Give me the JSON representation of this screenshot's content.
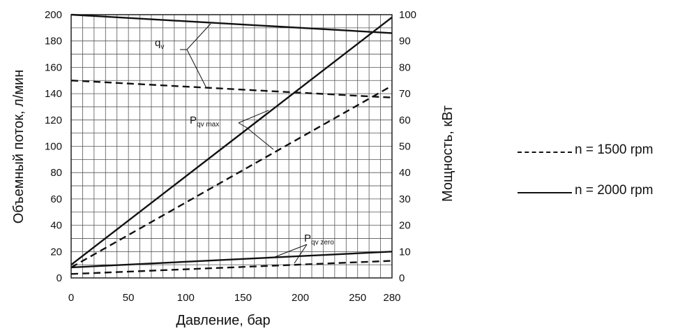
{
  "chart_data": {
    "type": "line",
    "x": [
      0,
      280
    ],
    "xlabel": "Давление, бар",
    "ylabel_left": "Объемный поток, л/мин",
    "ylabel_right": "Мощность, кВт",
    "xlim": [
      0,
      280
    ],
    "ylim_left": [
      0,
      200
    ],
    "ylim_right": [
      0,
      100
    ],
    "x_ticks": [
      0,
      50,
      100,
      150,
      200,
      250,
      280
    ],
    "y_ticks_left": [
      0,
      20,
      40,
      60,
      80,
      100,
      120,
      140,
      160,
      180,
      200
    ],
    "y_ticks_right": [
      0,
      10,
      20,
      30,
      40,
      50,
      60,
      70,
      80,
      90,
      100
    ],
    "grid": true,
    "series": [
      {
        "group": "qv",
        "axis": "left",
        "style": "solid",
        "x": [
          0,
          280
        ],
        "y": [
          200,
          186
        ]
      },
      {
        "group": "qv",
        "axis": "left",
        "style": "dashed",
        "x": [
          0,
          280
        ],
        "y": [
          150,
          137
        ]
      },
      {
        "group": "Pqv_max",
        "axis": "right",
        "style": "solid",
        "x": [
          0,
          280
        ],
        "y": [
          5,
          99
        ]
      },
      {
        "group": "Pqv_max",
        "axis": "right",
        "style": "dashed",
        "x": [
          0,
          280
        ],
        "y": [
          4,
          73
        ]
      },
      {
        "group": "Pqv_zero",
        "axis": "right",
        "style": "solid",
        "x": [
          0,
          280
        ],
        "y": [
          4,
          10
        ]
      },
      {
        "group": "Pqv_zero",
        "axis": "right",
        "style": "dashed",
        "x": [
          0,
          280
        ],
        "y": [
          1.5,
          6.5
        ]
      }
    ],
    "annotations": [
      {
        "label": "q",
        "sub": "v"
      },
      {
        "label": "P",
        "sub": "qv max"
      },
      {
        "label": "P",
        "sub": "qv zero"
      }
    ],
    "legend": {
      "placement": "right",
      "items": [
        {
          "style": "dashed",
          "label": "n = 1500 rpm"
        },
        {
          "style": "solid",
          "label": "n = 2000 rpm"
        }
      ]
    }
  }
}
